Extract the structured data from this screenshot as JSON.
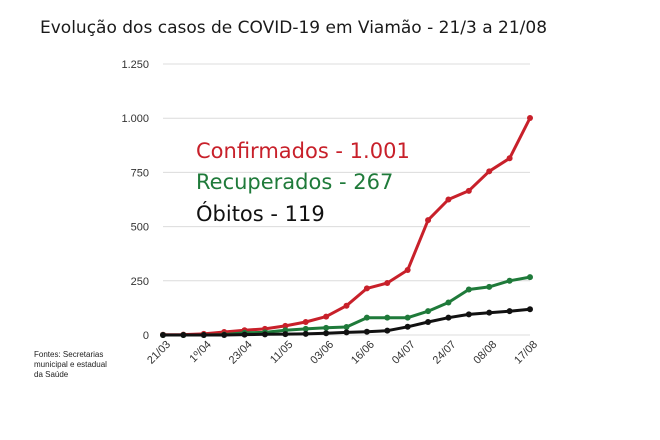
{
  "chart_data": {
    "type": "line",
    "title": "Evolução dos casos de COVID-19 em Viamão - 21/3 a 21/08",
    "xlabel": "",
    "ylabel": "",
    "ylim": [
      0,
      1250
    ],
    "yticks": [
      0,
      250,
      500,
      750,
      1000,
      1250
    ],
    "ytick_labels": [
      "0",
      "250",
      "500",
      "750",
      "1.000",
      "1.250"
    ],
    "xtick_labels": [
      "21/03",
      "1º/04",
      "23/04",
      "11/05",
      "03/06",
      "16/06",
      "04/07",
      "24/07",
      "08/08",
      "17/08"
    ],
    "grid": true,
    "series": [
      {
        "name": "Confirmados",
        "color": "#c8202a",
        "values": [
          1,
          2,
          5,
          14,
          22,
          28,
          42,
          60,
          85,
          135,
          215,
          240,
          300,
          530,
          625,
          665,
          755,
          815,
          1001
        ]
      },
      {
        "name": "Recuperados",
        "color": "#1f7a3a",
        "values": [
          0,
          0,
          0,
          2,
          10,
          12,
          22,
          28,
          33,
          37,
          80,
          80,
          80,
          110,
          150,
          210,
          222,
          250,
          267
        ]
      },
      {
        "name": "Óbitos",
        "color": "#111111",
        "values": [
          0,
          0,
          0,
          0,
          2,
          3,
          4,
          5,
          8,
          12,
          15,
          20,
          38,
          60,
          80,
          95,
          103,
          110,
          119
        ]
      }
    ],
    "annotations": [
      {
        "text": "Confirmados - 1.001",
        "color": "#c8202a"
      },
      {
        "text": "Recuperados - 267",
        "color": "#1f7a3a"
      },
      {
        "text": "Óbitos - 119",
        "color": "#111111"
      }
    ]
  },
  "sources": [
    "Fontes: Secretarias",
    "municipal e estadual",
    "da Saúde"
  ]
}
